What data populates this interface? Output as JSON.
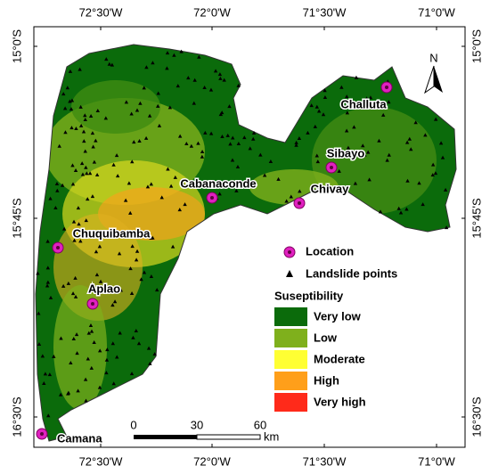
{
  "graticule": {
    "longitudes": [
      "72°30'W",
      "72°0'W",
      "71°30'W",
      "71°0'W"
    ],
    "latitudes": [
      "15°0'S",
      "15°45'S",
      "16°30'S"
    ]
  },
  "north": "N",
  "locations": [
    "Challuta",
    "Sibayo",
    "Chivay",
    "Cabanaconde",
    "Chuquibamba",
    "Aplao",
    "Camana"
  ],
  "legend": {
    "location": "Location",
    "landslides": "Landslide points",
    "title": "Suseptibility",
    "classes": [
      {
        "label": "Very low",
        "color": "#0b6b0b"
      },
      {
        "label": "Low",
        "color": "#7fb01c"
      },
      {
        "label": "Moderate",
        "color": "#ffff33"
      },
      {
        "label": "High",
        "color": "#ff9f1a"
      },
      {
        "label": "Very high",
        "color": "#ff2a1a"
      }
    ]
  },
  "scale": {
    "labels": [
      0,
      30,
      60
    ],
    "unit": "km"
  }
}
